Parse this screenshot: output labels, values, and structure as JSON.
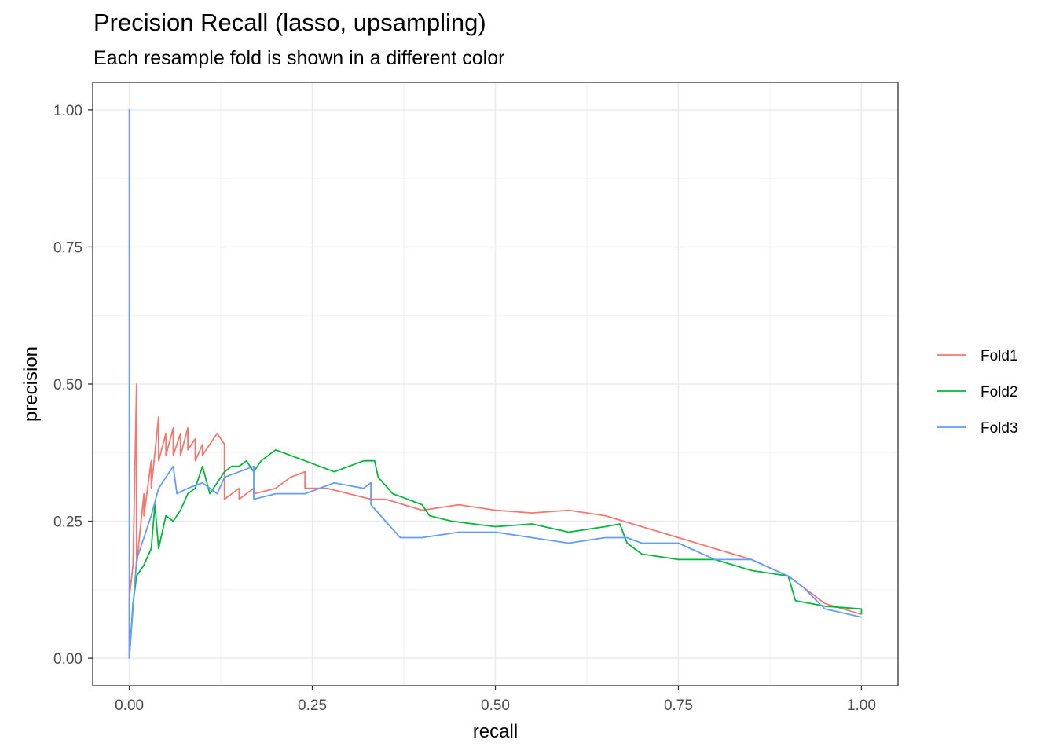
{
  "chart_data": {
    "type": "line",
    "title": "Precision Recall (lasso, upsampling)",
    "subtitle": "Each resample fold is shown in a different color",
    "xlabel": "recall",
    "ylabel": "precision",
    "xlim": [
      -0.05,
      1.05
    ],
    "ylim": [
      -0.05,
      1.05
    ],
    "x_ticks": [
      0,
      0.25,
      0.5,
      0.75,
      1
    ],
    "x_tick_labels": [
      "0.00",
      "0.25",
      "0.50",
      "0.75",
      "1.00"
    ],
    "y_ticks": [
      0,
      0.25,
      0.5,
      0.75,
      1
    ],
    "y_tick_labels": [
      "0.00",
      "0.25",
      "0.50",
      "0.75",
      "1.00"
    ],
    "grid": true,
    "legend_position": "right",
    "series": [
      {
        "name": "Fold1",
        "color": "#F8766D",
        "points": [
          [
            0,
            0
          ],
          [
            0,
            0.11
          ],
          [
            0.005,
            0.17
          ],
          [
            0.01,
            0.5
          ],
          [
            0.01,
            0.17
          ],
          [
            0.02,
            0.3
          ],
          [
            0.02,
            0.26
          ],
          [
            0.03,
            0.36
          ],
          [
            0.03,
            0.31
          ],
          [
            0.04,
            0.44
          ],
          [
            0.04,
            0.36
          ],
          [
            0.05,
            0.41
          ],
          [
            0.05,
            0.37
          ],
          [
            0.06,
            0.42
          ],
          [
            0.06,
            0.37
          ],
          [
            0.07,
            0.41
          ],
          [
            0.07,
            0.37
          ],
          [
            0.08,
            0.42
          ],
          [
            0.08,
            0.38
          ],
          [
            0.09,
            0.4
          ],
          [
            0.09,
            0.36
          ],
          [
            0.1,
            0.39
          ],
          [
            0.1,
            0.37
          ],
          [
            0.11,
            0.39
          ],
          [
            0.12,
            0.41
          ],
          [
            0.13,
            0.39
          ],
          [
            0.13,
            0.29
          ],
          [
            0.15,
            0.31
          ],
          [
            0.15,
            0.29
          ],
          [
            0.17,
            0.31
          ],
          [
            0.17,
            0.3
          ],
          [
            0.2,
            0.31
          ],
          [
            0.22,
            0.33
          ],
          [
            0.24,
            0.34
          ],
          [
            0.24,
            0.31
          ],
          [
            0.27,
            0.31
          ],
          [
            0.3,
            0.3
          ],
          [
            0.33,
            0.29
          ],
          [
            0.35,
            0.29
          ],
          [
            0.4,
            0.27
          ],
          [
            0.45,
            0.28
          ],
          [
            0.5,
            0.27
          ],
          [
            0.55,
            0.265
          ],
          [
            0.6,
            0.27
          ],
          [
            0.65,
            0.26
          ],
          [
            0.7,
            0.24
          ],
          [
            0.75,
            0.22
          ],
          [
            0.8,
            0.2
          ],
          [
            0.85,
            0.18
          ],
          [
            0.9,
            0.15
          ],
          [
            0.92,
            0.13
          ],
          [
            0.95,
            0.1
          ],
          [
            1,
            0.08
          ]
        ]
      },
      {
        "name": "Fold2",
        "color": "#00BA38",
        "points": [
          [
            0,
            0
          ],
          [
            0.005,
            0.1
          ],
          [
            0.01,
            0.15
          ],
          [
            0.02,
            0.17
          ],
          [
            0.03,
            0.2
          ],
          [
            0.035,
            0.28
          ],
          [
            0.04,
            0.2
          ],
          [
            0.05,
            0.26
          ],
          [
            0.06,
            0.25
          ],
          [
            0.07,
            0.27
          ],
          [
            0.08,
            0.3
          ],
          [
            0.09,
            0.31
          ],
          [
            0.1,
            0.35
          ],
          [
            0.11,
            0.3
          ],
          [
            0.12,
            0.32
          ],
          [
            0.13,
            0.34
          ],
          [
            0.14,
            0.35
          ],
          [
            0.15,
            0.35
          ],
          [
            0.16,
            0.36
          ],
          [
            0.17,
            0.34
          ],
          [
            0.18,
            0.36
          ],
          [
            0.2,
            0.38
          ],
          [
            0.22,
            0.37
          ],
          [
            0.24,
            0.36
          ],
          [
            0.26,
            0.35
          ],
          [
            0.28,
            0.34
          ],
          [
            0.3,
            0.35
          ],
          [
            0.32,
            0.36
          ],
          [
            0.335,
            0.36
          ],
          [
            0.34,
            0.33
          ],
          [
            0.36,
            0.3
          ],
          [
            0.38,
            0.29
          ],
          [
            0.4,
            0.28
          ],
          [
            0.41,
            0.26
          ],
          [
            0.44,
            0.25
          ],
          [
            0.5,
            0.24
          ],
          [
            0.55,
            0.245
          ],
          [
            0.6,
            0.23
          ],
          [
            0.65,
            0.24
          ],
          [
            0.67,
            0.245
          ],
          [
            0.68,
            0.21
          ],
          [
            0.7,
            0.19
          ],
          [
            0.75,
            0.18
          ],
          [
            0.8,
            0.18
          ],
          [
            0.85,
            0.16
          ],
          [
            0.9,
            0.15
          ],
          [
            0.91,
            0.105
          ],
          [
            0.95,
            0.095
          ],
          [
            1,
            0.09
          ],
          [
            1,
            0.08
          ]
        ]
      },
      {
        "name": "Fold3",
        "color": "#619CFF",
        "points": [
          [
            0,
            0
          ],
          [
            0,
            1
          ],
          [
            0,
            0
          ],
          [
            0.01,
            0.18
          ],
          [
            0.02,
            0.22
          ],
          [
            0.03,
            0.26
          ],
          [
            0.04,
            0.31
          ],
          [
            0.05,
            0.33
          ],
          [
            0.06,
            0.35
          ],
          [
            0.065,
            0.3
          ],
          [
            0.08,
            0.31
          ],
          [
            0.1,
            0.32
          ],
          [
            0.12,
            0.3
          ],
          [
            0.13,
            0.33
          ],
          [
            0.15,
            0.34
          ],
          [
            0.17,
            0.35
          ],
          [
            0.17,
            0.29
          ],
          [
            0.2,
            0.3
          ],
          [
            0.24,
            0.3
          ],
          [
            0.28,
            0.32
          ],
          [
            0.32,
            0.31
          ],
          [
            0.33,
            0.32
          ],
          [
            0.33,
            0.28
          ],
          [
            0.35,
            0.25
          ],
          [
            0.37,
            0.22
          ],
          [
            0.4,
            0.22
          ],
          [
            0.45,
            0.23
          ],
          [
            0.5,
            0.23
          ],
          [
            0.55,
            0.22
          ],
          [
            0.6,
            0.21
          ],
          [
            0.65,
            0.22
          ],
          [
            0.68,
            0.22
          ],
          [
            0.7,
            0.21
          ],
          [
            0.75,
            0.21
          ],
          [
            0.8,
            0.18
          ],
          [
            0.85,
            0.18
          ],
          [
            0.9,
            0.15
          ],
          [
            0.92,
            0.13
          ],
          [
            0.95,
            0.09
          ],
          [
            1,
            0.075
          ]
        ]
      }
    ]
  }
}
